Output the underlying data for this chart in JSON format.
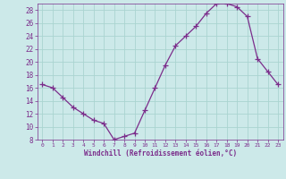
{
  "x": [
    0,
    1,
    2,
    3,
    4,
    5,
    6,
    7,
    8,
    9,
    10,
    11,
    12,
    13,
    14,
    15,
    16,
    17,
    18,
    19,
    20,
    21,
    22,
    23
  ],
  "y": [
    16.5,
    16.0,
    14.5,
    13.0,
    12.0,
    11.0,
    10.5,
    8.0,
    8.5,
    9.0,
    12.5,
    16.0,
    19.5,
    22.5,
    24.0,
    25.5,
    27.5,
    29.0,
    29.0,
    28.5,
    27.0,
    20.5,
    18.5,
    16.5
  ],
  "line_color": "#7b2d8b",
  "marker": "+",
  "marker_size": 4,
  "bg_color": "#cce9e9",
  "grid_color": "#aad4d0",
  "xlabel": "Windchill (Refroidissement éolien,°C)",
  "xlabel_color": "#7b2d8b",
  "tick_color": "#7b2d8b",
  "ylim": [
    8,
    29
  ],
  "xlim": [
    -0.5,
    23.5
  ],
  "yticks": [
    8,
    10,
    12,
    14,
    16,
    18,
    20,
    22,
    24,
    26,
    28
  ],
  "xticks": [
    0,
    1,
    2,
    3,
    4,
    5,
    6,
    7,
    8,
    9,
    10,
    11,
    12,
    13,
    14,
    15,
    16,
    17,
    18,
    19,
    20,
    21,
    22,
    23
  ]
}
